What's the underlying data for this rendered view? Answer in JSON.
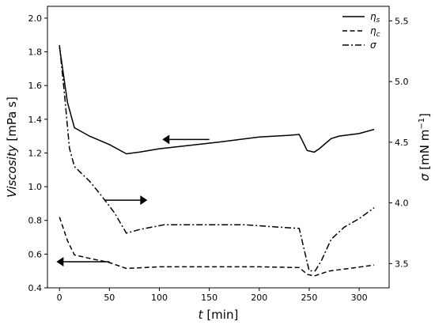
{
  "chart_data": {
    "type": "line",
    "xlabel_var": "t",
    "xlabel_unit": " [min]",
    "ylabel_left_var": "Viscosity",
    "ylabel_left_unit": " [mPa s]",
    "ylabel_right_var": "σ",
    "ylabel_right_unit_main": " [mN m",
    "ylabel_right_unit_sup": "−1",
    "ylabel_right_unit_end": "]",
    "xlim": [
      -12,
      330
    ],
    "ylim_left": [
      0.4,
      2.07
    ],
    "ylim_right": [
      3.3,
      5.62
    ],
    "x_ticks": [
      0,
      50,
      100,
      150,
      200,
      250,
      300
    ],
    "x_tick_labels": [
      "0",
      "50",
      "100",
      "150",
      "200",
      "250",
      "300"
    ],
    "y_left_ticks": [
      0.4,
      0.6,
      0.8,
      1.0,
      1.2,
      1.4,
      1.6,
      1.8,
      2.0
    ],
    "y_left_tick_labels": [
      "0.4",
      "0.6",
      "0.8",
      "1.0",
      "1.2",
      "1.4",
      "1.6",
      "1.8",
      "2.0"
    ],
    "y_right_ticks": [
      3.5,
      4.0,
      4.5,
      5.0,
      5.5
    ],
    "y_right_tick_labels": [
      "3.5",
      "4.0",
      "4.5",
      "5.0",
      "5.5"
    ],
    "grid": false,
    "legend_position": "top-right",
    "series": [
      {
        "name": "ηs",
        "name_main": "η",
        "name_sub": "s",
        "axis": "left",
        "dash": "solid",
        "x": [
          0,
          8,
          15,
          30,
          50,
          67,
          80,
          100,
          130,
          160,
          200,
          230,
          240,
          248,
          255,
          260,
          272,
          280,
          300,
          315
        ],
        "y": [
          1.83,
          1.5,
          1.35,
          1.3,
          1.25,
          1.195,
          1.205,
          1.225,
          1.245,
          1.265,
          1.295,
          1.305,
          1.31,
          1.215,
          1.205,
          1.225,
          1.285,
          1.3,
          1.315,
          1.34
        ]
      },
      {
        "name": "ηc",
        "name_main": "η",
        "name_sub": "c",
        "axis": "left",
        "dash": "dashed",
        "x": [
          0,
          8,
          15,
          30,
          50,
          67,
          100,
          150,
          200,
          240,
          248,
          255,
          260,
          270,
          290,
          315
        ],
        "y": [
          0.82,
          0.68,
          0.595,
          0.575,
          0.55,
          0.515,
          0.525,
          0.525,
          0.525,
          0.52,
          0.48,
          0.47,
          0.48,
          0.5,
          0.515,
          0.535
        ]
      },
      {
        "name": "σ",
        "name_main": "σ",
        "name_sub": "",
        "axis": "right",
        "dash": "dashdot",
        "x": [
          0,
          5,
          10,
          15,
          30,
          40,
          55,
          67,
          80,
          105,
          140,
          185,
          220,
          240,
          250,
          256,
          262,
          272,
          285,
          300,
          315
        ],
        "y": [
          5.3,
          4.9,
          4.45,
          4.3,
          4.18,
          4.08,
          3.92,
          3.75,
          3.78,
          3.82,
          3.82,
          3.82,
          3.8,
          3.79,
          3.44,
          3.44,
          3.52,
          3.7,
          3.8,
          3.87,
          3.96
        ]
      }
    ],
    "annotations": [
      {
        "type": "arrow",
        "axis": "left",
        "from_x": 150,
        "from_y": 1.28,
        "to_x": 103,
        "to_y": 1.28
      },
      {
        "type": "arrow",
        "axis": "left",
        "from_x": 45,
        "from_y": 0.92,
        "to_x": 88,
        "to_y": 0.92
      },
      {
        "type": "arrow",
        "axis": "left",
        "from_x": 50,
        "from_y": 0.555,
        "to_x": -3,
        "to_y": 0.555
      }
    ]
  }
}
